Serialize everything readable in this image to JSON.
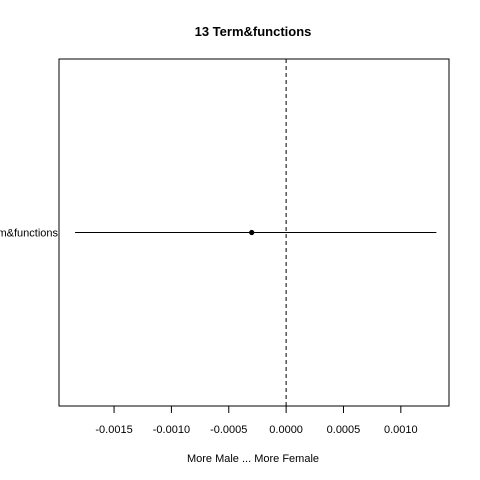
{
  "chart_data": {
    "type": "scatter",
    "title": "13 Term&functions",
    "xlabel": "More Male ... More Female",
    "ylabel": "",
    "xlim": [
      -0.00198,
      0.00142
    ],
    "x_ticks": [
      -0.0015,
      -0.001,
      -0.0005,
      0.0,
      0.0005,
      0.001
    ],
    "x_tick_labels": [
      "-0.0015",
      "-0.0010",
      "-0.0005",
      "0.0000",
      "0.0005",
      "0.0010"
    ],
    "reference_line": {
      "x": 0.0,
      "style": "dashed"
    },
    "grid": false,
    "legend": "none",
    "points": [
      {
        "label": "Term&functions",
        "estimate": -0.0003,
        "lower": -0.00184,
        "upper": 0.00131
      }
    ]
  }
}
